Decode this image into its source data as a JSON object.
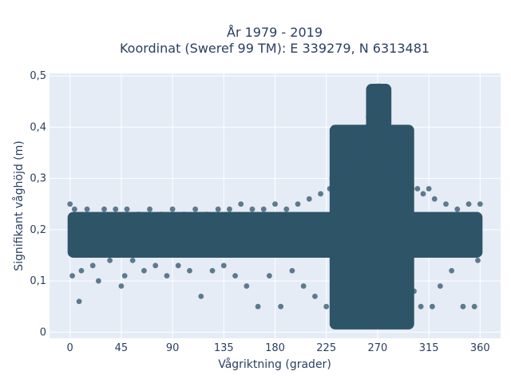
{
  "chart_data": {
    "type": "scatter",
    "title_line1": "År 1979 - 2019",
    "title_line2": "Koordinat (Sweref 99 TM): E 339279, N 6313481",
    "xlabel": "Vågriktning (grader)",
    "ylabel": "Signifikant våghöjd (m)",
    "xlim": [
      -18,
      378
    ],
    "ylim": [
      -0.012,
      0.505
    ],
    "xticks": [
      0,
      45,
      90,
      135,
      180,
      225,
      270,
      315,
      360
    ],
    "xtick_labels": [
      "0",
      "45",
      "90",
      "135",
      "180",
      "225",
      "270",
      "315",
      "360"
    ],
    "yticks": [
      0,
      0.1,
      0.2,
      0.3,
      0.4,
      0.5
    ],
    "ytick_labels": [
      "0",
      "0,1",
      "0,2",
      "0,3",
      "0,4",
      "0,5"
    ],
    "grid": true,
    "legend": "none",
    "colors": {
      "marker": "#2e5468",
      "plot_bg": "#e5ecf6",
      "grid": "#ffffff",
      "text": "#2a3f5f"
    },
    "dense_regions": [
      {
        "x_range": [
          0,
          360
        ],
        "y_range": [
          0.15,
          0.23
        ],
        "note": "main band"
      },
      {
        "x_range": [
          230,
          300
        ],
        "y_range": [
          0.01,
          0.4
        ]
      },
      {
        "x_range": [
          262,
          280
        ],
        "y_range": [
          0.4,
          0.48
        ]
      }
    ],
    "points": [
      [
        0,
        0.25
      ],
      [
        2,
        0.11
      ],
      [
        4,
        0.24
      ],
      [
        8,
        0.06
      ],
      [
        10,
        0.12
      ],
      [
        15,
        0.24
      ],
      [
        20,
        0.13
      ],
      [
        25,
        0.1
      ],
      [
        30,
        0.24
      ],
      [
        35,
        0.14
      ],
      [
        40,
        0.24
      ],
      [
        45,
        0.09
      ],
      [
        48,
        0.11
      ],
      [
        50,
        0.24
      ],
      [
        55,
        0.14
      ],
      [
        60,
        0.23
      ],
      [
        65,
        0.12
      ],
      [
        70,
        0.24
      ],
      [
        75,
        0.13
      ],
      [
        80,
        0.23
      ],
      [
        85,
        0.11
      ],
      [
        90,
        0.24
      ],
      [
        95,
        0.13
      ],
      [
        100,
        0.23
      ],
      [
        105,
        0.12
      ],
      [
        110,
        0.24
      ],
      [
        115,
        0.07
      ],
      [
        120,
        0.23
      ],
      [
        125,
        0.12
      ],
      [
        130,
        0.24
      ],
      [
        135,
        0.13
      ],
      [
        140,
        0.24
      ],
      [
        145,
        0.11
      ],
      [
        150,
        0.25
      ],
      [
        155,
        0.09
      ],
      [
        160,
        0.24
      ],
      [
        165,
        0.05
      ],
      [
        170,
        0.24
      ],
      [
        175,
        0.11
      ],
      [
        180,
        0.25
      ],
      [
        185,
        0.05
      ],
      [
        190,
        0.24
      ],
      [
        195,
        0.12
      ],
      [
        200,
        0.25
      ],
      [
        205,
        0.09
      ],
      [
        210,
        0.26
      ],
      [
        215,
        0.07
      ],
      [
        220,
        0.27
      ],
      [
        225,
        0.05
      ],
      [
        228,
        0.28
      ],
      [
        230,
        0.3
      ],
      [
        232,
        0.08
      ],
      [
        235,
        0.27
      ],
      [
        238,
        0.31
      ],
      [
        240,
        0.29
      ],
      [
        242,
        0.32
      ],
      [
        245,
        0.05
      ],
      [
        248,
        0.36
      ],
      [
        250,
        0.34
      ],
      [
        252,
        0.38
      ],
      [
        255,
        0.37
      ],
      [
        258,
        0.39
      ],
      [
        260,
        0.4
      ],
      [
        262,
        0.42
      ],
      [
        265,
        0.45
      ],
      [
        268,
        0.47
      ],
      [
        270,
        0.48
      ],
      [
        272,
        0.48
      ],
      [
        275,
        0.46
      ],
      [
        278,
        0.43
      ],
      [
        280,
        0.39
      ],
      [
        282,
        0.37
      ],
      [
        285,
        0.34
      ],
      [
        288,
        0.33
      ],
      [
        290,
        0.31
      ],
      [
        292,
        0.32
      ],
      [
        295,
        0.3
      ],
      [
        298,
        0.29
      ],
      [
        300,
        0.28
      ],
      [
        302,
        0.08
      ],
      [
        305,
        0.28
      ],
      [
        308,
        0.05
      ],
      [
        310,
        0.27
      ],
      [
        315,
        0.28
      ],
      [
        318,
        0.05
      ],
      [
        320,
        0.26
      ],
      [
        325,
        0.09
      ],
      [
        330,
        0.25
      ],
      [
        335,
        0.12
      ],
      [
        340,
        0.24
      ],
      [
        345,
        0.05
      ],
      [
        350,
        0.25
      ],
      [
        355,
        0.05
      ],
      [
        358,
        0.14
      ],
      [
        360,
        0.25
      ]
    ]
  }
}
